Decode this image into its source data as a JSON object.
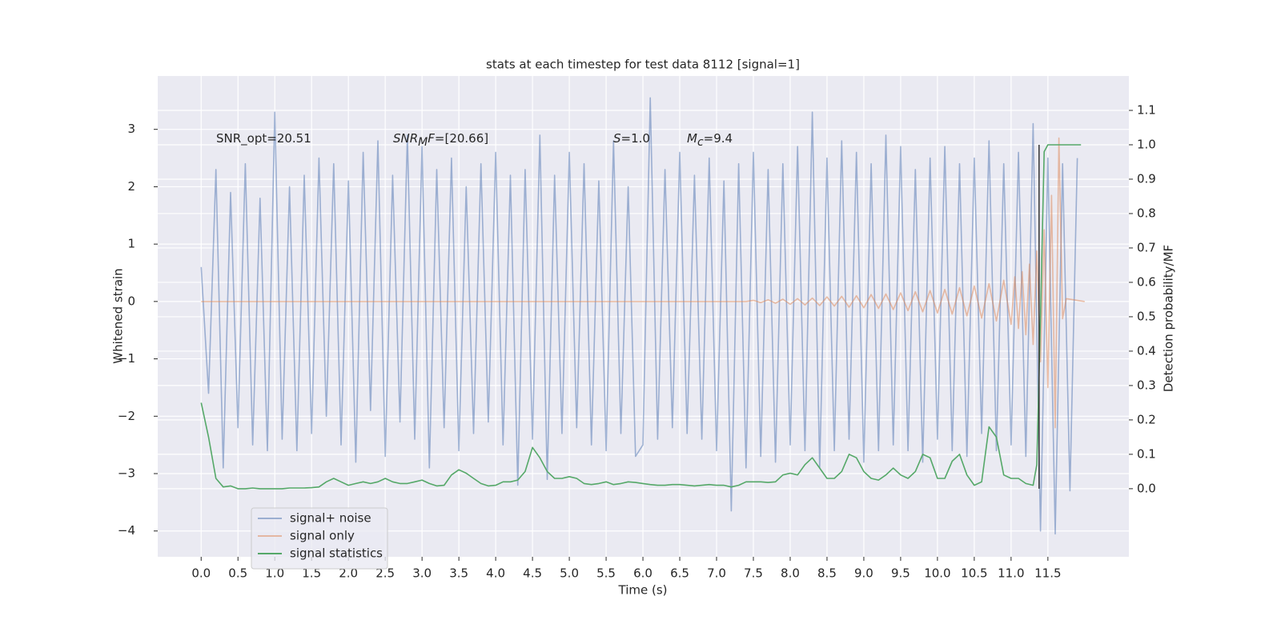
{
  "chart_data": {
    "type": "line",
    "title": "stats at each timestep for test data 8112 [signal=1]",
    "xlabel": "Time (s)",
    "ylabel": "Whitened strain",
    "y2label": "Detection probability/MF",
    "xlim": [
      -0.59,
      12.6
    ],
    "ylim": [
      -4.45,
      3.93
    ],
    "y2lim": [
      -0.198,
      1.2
    ],
    "xticks": [
      {
        "value": 0,
        "label": "0.0"
      },
      0.5,
      {
        "value": 1,
        "label": "1.0"
      },
      1.5,
      {
        "value": 2,
        "label": "2.0"
      },
      2.5,
      {
        "value": 3,
        "label": "3.0"
      },
      3.5,
      {
        "value": 4,
        "label": "4.0"
      },
      4.5,
      {
        "value": 5,
        "label": "5.0"
      },
      5.5,
      {
        "value": 6,
        "label": "6.0"
      },
      6.5,
      {
        "value": 7,
        "label": "7.0"
      },
      7.5,
      {
        "value": 8,
        "label": "8.0"
      },
      8.5,
      {
        "value": 9,
        "label": "9.0"
      },
      9.5,
      {
        "value": 10,
        "label": "10.0"
      },
      10.5,
      {
        "value": 11,
        "label": "11.0"
      },
      11.5
    ],
    "yticks": [
      {
        "value": -4,
        "label": "−4"
      },
      {
        "value": -3,
        "label": "−3"
      },
      {
        "value": -2,
        "label": "−2"
      },
      {
        "value": -1,
        "label": "−1"
      },
      0,
      1,
      2,
      3
    ],
    "y2ticks": [
      {
        "value": 0,
        "label": "0.0"
      },
      0.1,
      0.2,
      0.3,
      0.4,
      0.5,
      0.6,
      0.7,
      0.8,
      0.9,
      {
        "value": 1,
        "label": "1.0"
      },
      1.1
    ],
    "grid": true,
    "background": "#eaeaf2",
    "legend": "lower left",
    "series": [
      {
        "name": "signal+ noise",
        "color": "#4c72b0",
        "alpha": 0.5,
        "x": [
          0,
          0.1,
          0.2,
          0.3,
          0.4,
          0.5,
          0.6,
          0.7,
          0.8,
          0.9,
          1,
          1.1,
          1.2,
          1.3,
          1.4,
          1.5,
          1.6,
          1.7,
          1.8,
          1.9,
          2,
          2.1,
          2.2,
          2.3,
          2.4,
          2.5,
          2.6,
          2.7,
          2.8,
          2.9,
          3,
          3.1,
          3.2,
          3.3,
          3.4,
          3.5,
          3.6,
          3.7,
          3.8,
          3.9,
          4,
          4.1,
          4.2,
          4.3,
          4.4,
          4.5,
          4.6,
          4.7,
          4.8,
          4.9,
          5,
          5.1,
          5.2,
          5.3,
          5.4,
          5.5,
          5.6,
          5.7,
          5.8,
          5.9,
          6,
          6.1,
          6.2,
          6.3,
          6.4,
          6.5,
          6.6,
          6.7,
          6.8,
          6.9,
          7,
          7.1,
          7.2,
          7.3,
          7.4,
          7.5,
          7.6,
          7.7,
          7.8,
          7.9,
          8,
          8.1,
          8.2,
          8.3,
          8.4,
          8.5,
          8.6,
          8.7,
          8.8,
          8.9,
          9,
          9.1,
          9.2,
          9.3,
          9.4,
          9.5,
          9.6,
          9.7,
          9.8,
          9.9,
          10,
          10.1,
          10.2,
          10.3,
          10.4,
          10.5,
          10.6,
          10.7,
          10.8,
          10.9,
          11,
          11.1,
          11.2,
          11.3,
          11.4,
          11.5,
          11.6,
          11.7,
          11.8,
          11.9
        ],
        "values": [
          0.6,
          -1.6,
          2.3,
          -2.9,
          1.9,
          -2.2,
          2.4,
          -2.5,
          1.8,
          -2.6,
          3.3,
          -2.4,
          2.0,
          -2.6,
          2.2,
          -2.3,
          2.5,
          -2.0,
          2.4,
          -2.5,
          2.1,
          -2.8,
          2.6,
          -1.9,
          2.8,
          -2.7,
          2.2,
          -2.1,
          2.9,
          -2.4,
          2.7,
          -2.9,
          2.3,
          -2.2,
          2.5,
          -2.6,
          2.0,
          -2.3,
          2.4,
          -2.1,
          2.6,
          -2.5,
          2.2,
          -3.2,
          2.3,
          -2.4,
          2.9,
          -3.1,
          2.2,
          -2.3,
          2.6,
          -2.2,
          2.4,
          -2.5,
          2.1,
          -2.6,
          2.8,
          -2.3,
          2.0,
          -2.7,
          -2.5,
          3.55,
          -2.4,
          2.3,
          -2.2,
          2.6,
          -2.3,
          2.2,
          -2.4,
          2.5,
          -2.6,
          2.1,
          -3.65,
          2.4,
          -2.9,
          2.6,
          -2.7,
          2.3,
          -2.8,
          2.4,
          -2.5,
          2.7,
          -2.6,
          3.3,
          -2.9,
          2.5,
          -2.6,
          2.8,
          -2.4,
          2.6,
          -2.8,
          2.4,
          -2.6,
          2.9,
          -2.5,
          2.7,
          -2.6,
          2.3,
          -2.8,
          2.5,
          -2.4,
          2.7,
          -2.6,
          2.4,
          -2.7,
          2.5,
          -2.3,
          2.8,
          -2.6,
          2.4,
          -2.5,
          2.6,
          -2.7,
          3.1,
          -4.0,
          2.5,
          -4.05,
          2.4,
          -3.3,
          2.5
        ]
      },
      {
        "name": "signal only",
        "color": "#dd8452",
        "alpha": 0.5,
        "x": [
          0,
          7.4,
          7.5,
          7.6,
          7.7,
          7.8,
          7.9,
          8,
          8.1,
          8.2,
          8.3,
          8.4,
          8.5,
          8.6,
          8.7,
          8.8,
          8.9,
          9,
          9.1,
          9.2,
          9.3,
          9.4,
          9.5,
          9.6,
          9.7,
          9.8,
          9.9,
          10,
          10.1,
          10.2,
          10.3,
          10.4,
          10.5,
          10.6,
          10.7,
          10.8,
          10.9,
          11,
          11.05,
          11.1,
          11.15,
          11.2,
          11.25,
          11.3,
          11.35,
          11.4,
          11.45,
          11.5,
          11.55,
          11.6,
          11.65,
          11.7,
          11.75,
          12
        ],
        "values": [
          0,
          0,
          0.02,
          -0.02,
          0.03,
          -0.03,
          0.04,
          -0.05,
          0.05,
          -0.06,
          0.06,
          -0.07,
          0.08,
          -0.08,
          0.09,
          -0.1,
          0.1,
          -0.11,
          0.12,
          -0.12,
          0.13,
          -0.14,
          0.15,
          -0.16,
          0.17,
          -0.18,
          0.19,
          -0.2,
          0.21,
          -0.22,
          0.24,
          -0.25,
          0.27,
          -0.29,
          0.31,
          -0.34,
          0.37,
          -0.4,
          0.43,
          -0.47,
          0.52,
          -0.58,
          0.65,
          -0.75,
          0.88,
          -1.05,
          1.25,
          -1.5,
          1.85,
          -2.2,
          2.85,
          -0.3,
          0.05,
          0
        ]
      },
      {
        "name": "signal statistics",
        "color": "#55a868",
        "alpha": 1,
        "axis": "y2",
        "x": [
          0,
          0.1,
          0.2,
          0.3,
          0.4,
          0.5,
          0.6,
          0.7,
          0.8,
          0.9,
          1,
          1.1,
          1.2,
          1.3,
          1.4,
          1.5,
          1.6,
          1.7,
          1.8,
          1.9,
          2,
          2.1,
          2.2,
          2.3,
          2.4,
          2.5,
          2.6,
          2.7,
          2.8,
          2.9,
          3,
          3.1,
          3.2,
          3.3,
          3.4,
          3.5,
          3.6,
          3.7,
          3.8,
          3.9,
          4,
          4.1,
          4.2,
          4.3,
          4.4,
          4.5,
          4.6,
          4.7,
          4.8,
          4.9,
          5,
          5.1,
          5.2,
          5.3,
          5.4,
          5.5,
          5.6,
          5.7,
          5.8,
          5.9,
          6,
          6.1,
          6.2,
          6.3,
          6.4,
          6.5,
          6.6,
          6.7,
          6.8,
          6.9,
          7,
          7.1,
          7.2,
          7.3,
          7.4,
          7.5,
          7.6,
          7.7,
          7.8,
          7.9,
          8,
          8.1,
          8.2,
          8.3,
          8.4,
          8.5,
          8.6,
          8.7,
          8.8,
          8.9,
          9,
          9.1,
          9.2,
          9.3,
          9.4,
          9.5,
          9.6,
          9.7,
          9.8,
          9.9,
          10,
          10.1,
          10.2,
          10.3,
          10.4,
          10.5,
          10.6,
          10.7,
          10.8,
          10.9,
          11,
          11.1,
          11.2,
          11.3,
          11.35,
          11.4,
          11.45,
          11.5,
          11.6,
          11.7,
          11.8,
          11.9,
          11.95
        ],
        "values": [
          0.25,
          0.15,
          0.03,
          0.005,
          0.008,
          0,
          0,
          0.002,
          0,
          0,
          0,
          0,
          0.002,
          0.002,
          0.002,
          0.003,
          0.005,
          0.02,
          0.03,
          0.02,
          0.01,
          0.015,
          0.02,
          0.015,
          0.02,
          0.03,
          0.02,
          0.015,
          0.015,
          0.02,
          0.025,
          0.015,
          0.008,
          0.01,
          0.04,
          0.055,
          0.045,
          0.03,
          0.015,
          0.008,
          0.01,
          0.02,
          0.02,
          0.025,
          0.05,
          0.12,
          0.09,
          0.05,
          0.03,
          0.03,
          0.035,
          0.03,
          0.015,
          0.012,
          0.015,
          0.02,
          0.012,
          0.015,
          0.02,
          0.018,
          0.015,
          0.012,
          0.01,
          0.01,
          0.012,
          0.012,
          0.01,
          0.008,
          0.01,
          0.012,
          0.01,
          0.01,
          0.005,
          0.01,
          0.02,
          0.02,
          0.02,
          0.018,
          0.02,
          0.04,
          0.045,
          0.04,
          0.07,
          0.09,
          0.06,
          0.03,
          0.03,
          0.05,
          0.1,
          0.09,
          0.05,
          0.03,
          0.025,
          0.04,
          0.06,
          0.04,
          0.03,
          0.05,
          0.1,
          0.09,
          0.03,
          0.03,
          0.08,
          0.1,
          0.04,
          0.01,
          0.02,
          0.18,
          0.15,
          0.04,
          0.03,
          0.03,
          0.015,
          0.01,
          0.07,
          0.5,
          0.98,
          1,
          1,
          1,
          1,
          1,
          1
        ]
      }
    ],
    "vlines": [
      {
        "x": 11.38,
        "ymin": 0,
        "ymax": 1,
        "axis": "y2",
        "color": "#333333"
      }
    ],
    "annotations": [
      [
        {
          "text": "SNR_opt=20.51",
          "style": "normal"
        }
      ],
      [
        {
          "text": "SNR",
          "style": "italic"
        },
        {
          "text": "M",
          "style": "italic-sub"
        },
        {
          "text": "F",
          "style": "italic"
        },
        {
          "text": "=[20.66]",
          "style": "normal"
        }
      ],
      [
        {
          "text": "S",
          "style": "italic"
        },
        {
          "text": "=1.0",
          "style": "normal"
        }
      ],
      [
        {
          "text": "M",
          "style": "italic"
        },
        {
          "text": "c",
          "style": "italic-sub"
        },
        {
          "text": "=9.4",
          "style": "normal"
        }
      ]
    ]
  }
}
